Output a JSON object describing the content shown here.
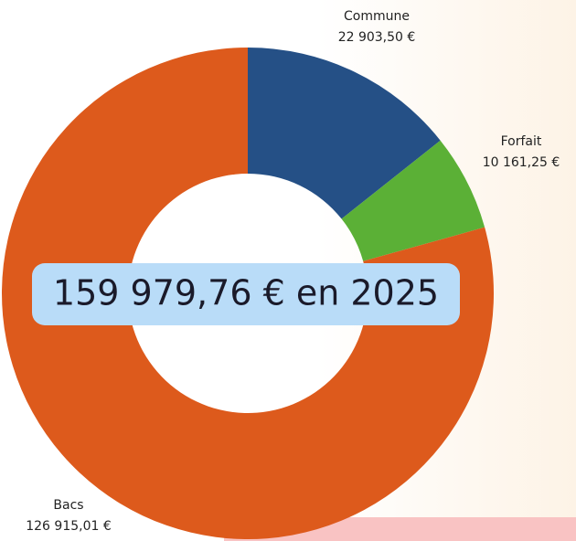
{
  "chart_data": {
    "type": "donut",
    "categories": [
      "Commune",
      "Forfait",
      "Bacs"
    ],
    "values": [
      22903.5,
      10161.25,
      126915.01
    ],
    "value_labels": [
      "22 903,50 €",
      "10 161,25 €",
      "126 915,01 €"
    ],
    "colors": [
      "#255086",
      "#5bb036",
      "#dd5a1c"
    ],
    "center_label": "159 979,76 € en 2025"
  }
}
